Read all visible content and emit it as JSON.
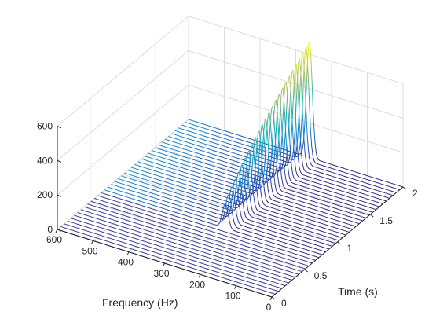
{
  "chart_data": {
    "type": "waterfall",
    "xlabel": "Time (s)",
    "ylabel": "Frequency (Hz)",
    "zlabel": "",
    "xlim": [
      0,
      2
    ],
    "ylim": [
      0,
      600
    ],
    "zlim": [
      0,
      600
    ],
    "x_ticks": [
      "0",
      "0.5",
      "1",
      "1.5",
      "2"
    ],
    "y_ticks": [
      "0",
      "100",
      "200",
      "300",
      "400",
      "500",
      "600"
    ],
    "z_ticks": [
      "0",
      "200",
      "400",
      "600"
    ],
    "grid": true,
    "colormap": "parula",
    "trace_count": 40,
    "onset_time_s": 0.68,
    "peak_frequency_hz": 262,
    "peak_amplitude_range": [
      100,
      680
    ],
    "baseline_color": "#3a3a9a"
  }
}
